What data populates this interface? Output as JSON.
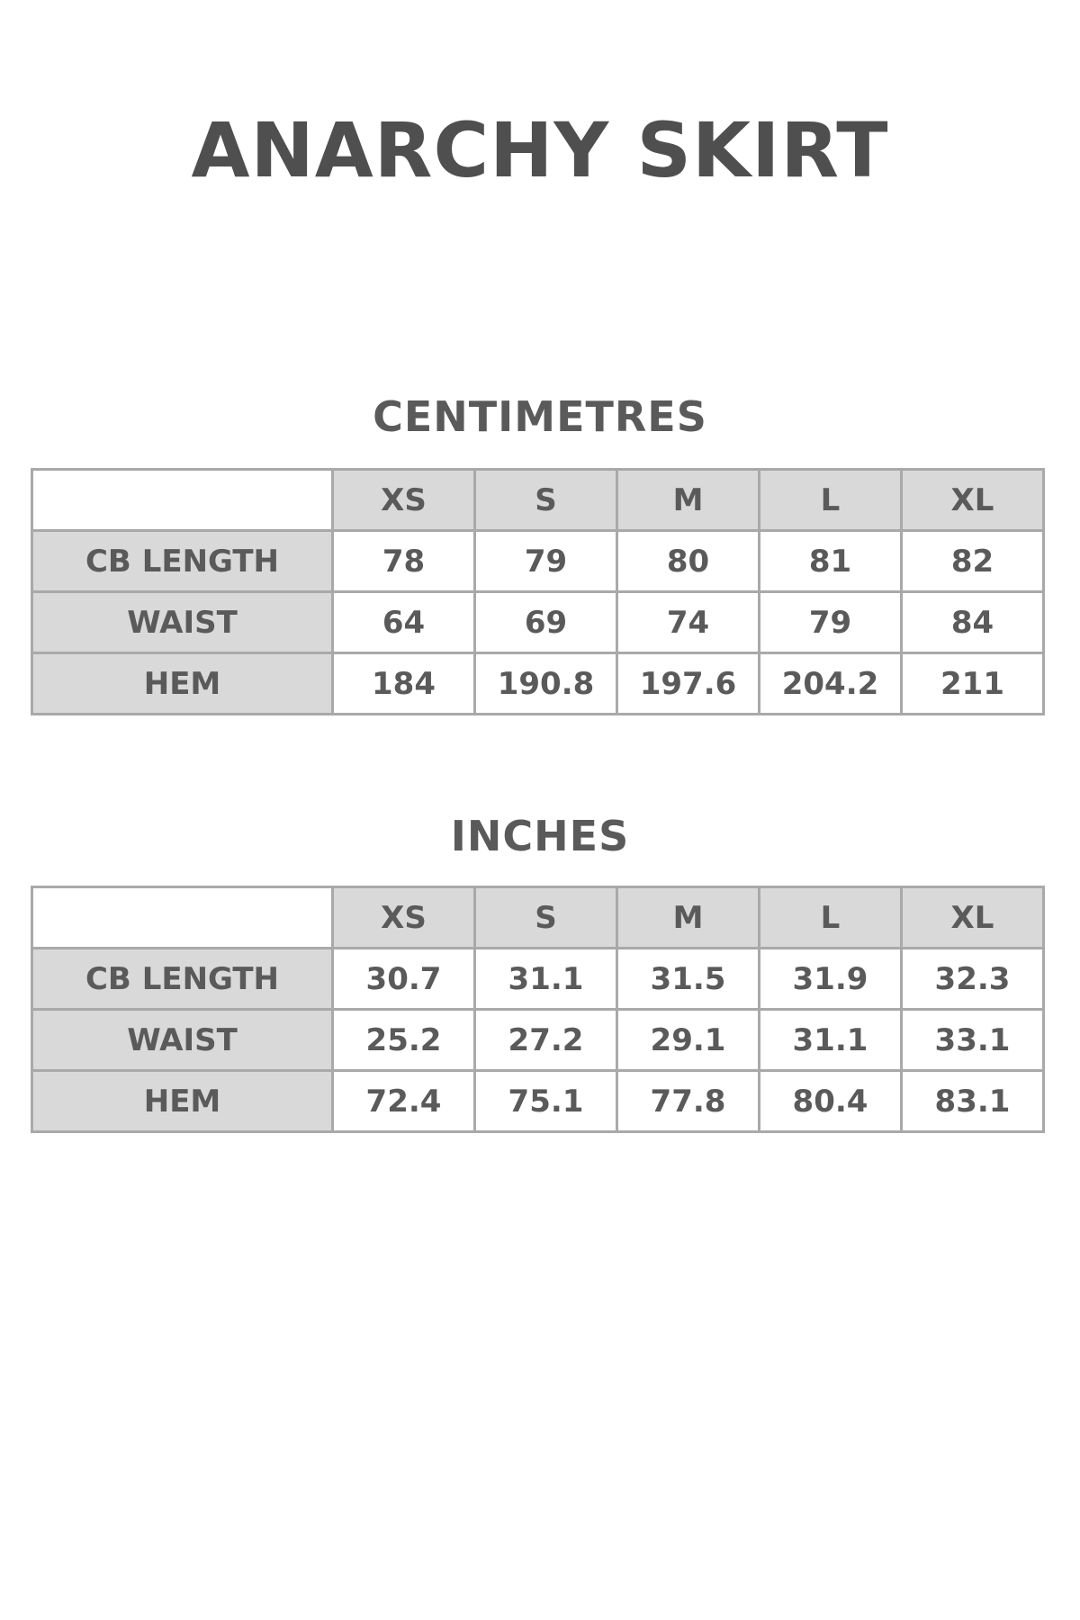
{
  "title": "ANARCHY SKIRT",
  "tables": [
    {
      "heading": "CENTIMETRES",
      "sizes": [
        "XS",
        "S",
        "M",
        "L",
        "XL"
      ],
      "rows": [
        {
          "label": "CB LENGTH",
          "values": [
            "78",
            "79",
            "80",
            "81",
            "82"
          ]
        },
        {
          "label": "WAIST",
          "values": [
            "64",
            "69",
            "74",
            "79",
            "84"
          ]
        },
        {
          "label": "HEM",
          "values": [
            "184",
            "190.8",
            "197.6",
            "204.2",
            "211"
          ]
        }
      ]
    },
    {
      "heading": "INCHES",
      "sizes": [
        "XS",
        "S",
        "M",
        "L",
        "XL"
      ],
      "rows": [
        {
          "label": "CB LENGTH",
          "values": [
            "30.7",
            "31.1",
            "31.5",
            "31.9",
            "32.3"
          ]
        },
        {
          "label": "WAIST",
          "values": [
            "25.2",
            "27.2",
            "29.1",
            "31.1",
            "33.1"
          ]
        },
        {
          "label": "HEM",
          "values": [
            "72.4",
            "75.1",
            "77.8",
            "80.4",
            "83.1"
          ]
        }
      ]
    }
  ],
  "colors": {
    "text": "#555555",
    "header_fill": "#d9d9d9",
    "border": "#a9a9a9"
  }
}
